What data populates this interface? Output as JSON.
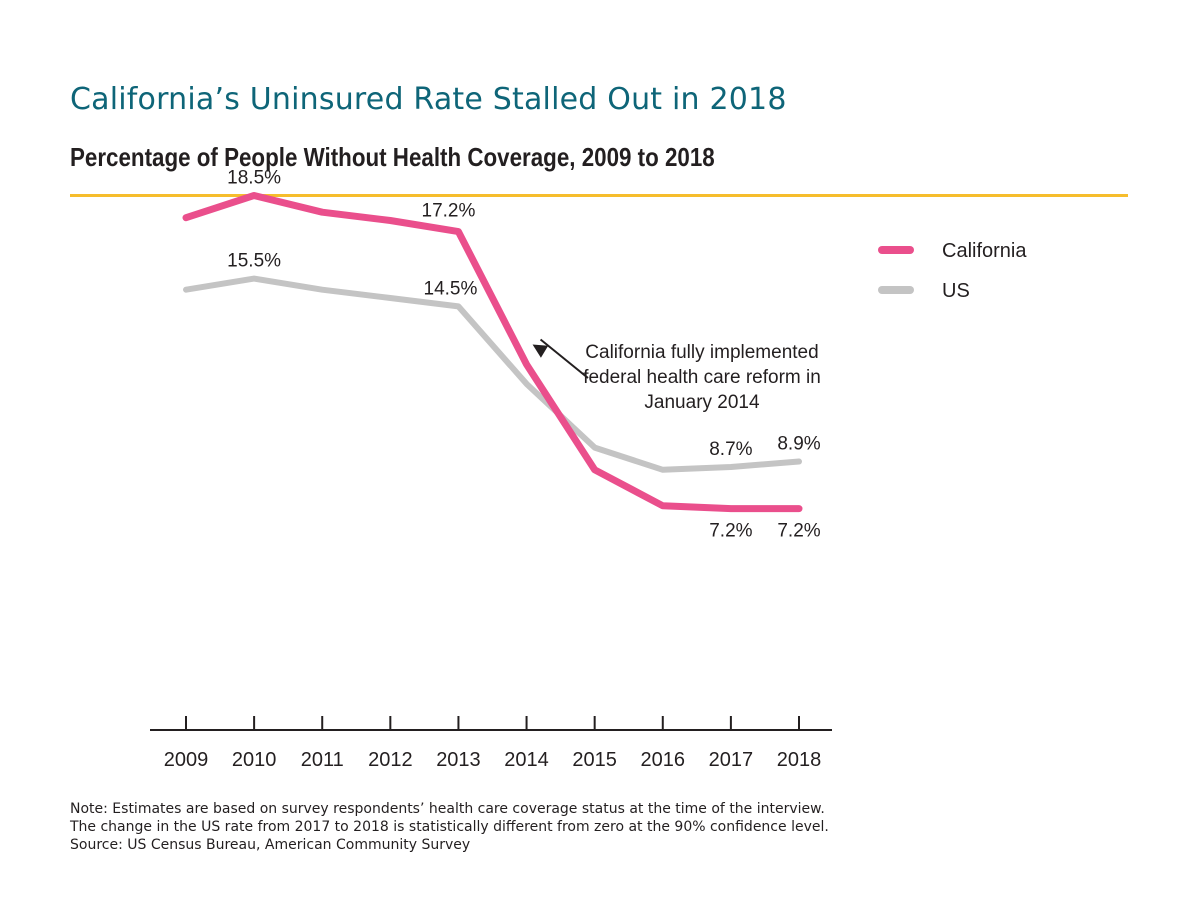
{
  "title": "California’s Uninsured Rate Stalled Out in 2018",
  "subtitle": "Percentage of People Without Health Coverage, 2009 to 2018",
  "colors": {
    "title": "#0e6578",
    "rule": "#f6bd2c",
    "california": "#ea4f8c",
    "us": "#c4c4c4",
    "text": "#231f20"
  },
  "legend": {
    "position": "top-right",
    "items": [
      {
        "label": "California",
        "color": "#ea4f8c"
      },
      {
        "label": "US",
        "color": "#c4c4c4"
      }
    ]
  },
  "annotation": {
    "lines": [
      "California fully implemented",
      "federal health care reform in",
      "January 2014"
    ],
    "points_to": {
      "x": "2014",
      "series": "California"
    }
  },
  "chart_data": {
    "type": "line",
    "categories": [
      "2009",
      "2010",
      "2011",
      "2012",
      "2013",
      "2014",
      "2015",
      "2016",
      "2017",
      "2018"
    ],
    "ylim": [
      0,
      20
    ],
    "grid": false,
    "series": [
      {
        "name": "California",
        "color": "#ea4f8c",
        "values": [
          17.7,
          18.5,
          17.9,
          17.6,
          17.2,
          12.4,
          8.6,
          7.3,
          7.2,
          7.2
        ],
        "labels": [
          "",
          "18.5%",
          "",
          "",
          "17.2%",
          "",
          "",
          "",
          "7.2%",
          "7.2%"
        ]
      },
      {
        "name": "US",
        "color": "#c4c4c4",
        "values": [
          15.1,
          15.5,
          15.1,
          14.8,
          14.5,
          11.7,
          9.4,
          8.6,
          8.7,
          8.9
        ],
        "labels": [
          "",
          "15.5%",
          "",
          "",
          "14.5%",
          "",
          "",
          "",
          "8.7%",
          "8.9%"
        ]
      }
    ]
  },
  "notes": {
    "note": "Note: Estimates are based on survey respondents’ health care coverage status at the time of the interview. The change in the US rate from 2017 to 2018 is statistically different from zero at the 90% confidence level.",
    "source": "Source: US Census Bureau, American Community Survey"
  }
}
